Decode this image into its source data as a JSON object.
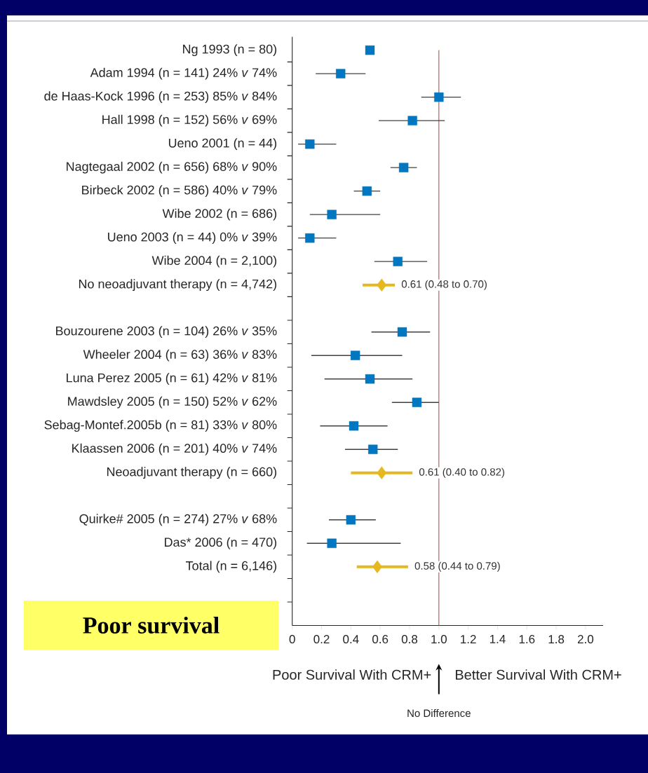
{
  "chart_data": {
    "type": "scatter",
    "orientation": "horizontal",
    "categories": [
      "Ng 1993 (n = 80)",
      "Adam 1994 (n = 141) 24% *v* 74%",
      "de Haas-Kock 1996 (n = 253) 85% *v* 84%",
      "Hall 1998 (n = 152) 56% *v* 69%",
      "Ueno 2001 (n = 44)",
      "Nagtegaal 2002 (n = 656) 68% *v* 90%",
      "Birbeck 2002 (n = 586) 40% *v* 79%",
      "Wibe 2002 (n = 686)",
      "Ueno 2003 (n = 44) 0% *v* 39%",
      "Wibe 2004 (n = 2,100)",
      "No neoadjuvant therapy (n = 4,742)",
      null,
      "Bouzourene 2003 (n = 104) 26% *v* 35%",
      "Wheeler 2004 (n = 63) 36% *v* 83%",
      "Luna Perez 2005 (n = 61) 42% *v* 81%",
      "Mawdsley 2005 (n = 150) 52% *v* 62%",
      "Sebag-Montef.2005b (n = 81) 33% *v* 80%",
      "Klaassen 2006 (n = 201) 40% *v* 74%",
      "Neoadjuvant therapy (n = 660)",
      null,
      "Quirke# 2005 (n = 274) 27% *v* 68%",
      "Das* 2006 (n = 470)",
      "Total (n = 6,146)",
      null,
      null
    ],
    "series": [
      {
        "color": "#0077c0",
        "marker": "square",
        "values": [
          0.53,
          0.33,
          1.0,
          0.82,
          0.12,
          0.76,
          0.51,
          0.27,
          0.12,
          0.72,
          null,
          null,
          0.75,
          0.43,
          0.53,
          0.85,
          0.42,
          0.55,
          null,
          null,
          0.4,
          0.27,
          null,
          null,
          null
        ],
        "errors": [
          null,
          [
            0.16,
            0.5
          ],
          [
            0.88,
            1.15
          ],
          [
            0.59,
            1.04
          ],
          [
            0.04,
            0.3
          ],
          [
            0.67,
            0.85
          ],
          [
            0.42,
            0.6
          ],
          [
            0.12,
            0.6
          ],
          [
            0.04,
            0.3
          ],
          [
            0.56,
            0.92
          ],
          null,
          null,
          [
            0.54,
            0.94
          ],
          [
            0.13,
            0.75
          ],
          [
            0.22,
            0.82
          ],
          [
            0.68,
            1.0
          ],
          [
            0.19,
            0.65
          ],
          [
            0.36,
            0.72
          ],
          null,
          null,
          [
            0.25,
            0.57
          ],
          [
            0.1,
            0.74
          ],
          null,
          null,
          null
        ]
      },
      {
        "color": "#e6b820",
        "marker": "diamond",
        "values": [
          null,
          null,
          null,
          null,
          null,
          null,
          null,
          null,
          null,
          null,
          0.61,
          null,
          null,
          null,
          null,
          null,
          null,
          null,
          0.61,
          null,
          null,
          null,
          0.58,
          null,
          null
        ],
        "errors": [
          null,
          null,
          null,
          null,
          null,
          null,
          null,
          null,
          null,
          null,
          [
            0.48,
            0.7
          ],
          null,
          null,
          null,
          null,
          null,
          null,
          null,
          [
            0.4,
            0.82
          ],
          null,
          null,
          null,
          [
            0.44,
            0.79
          ],
          null,
          null
        ],
        "value_labels": [
          null,
          null,
          null,
          null,
          null,
          null,
          null,
          null,
          null,
          null,
          "0.61 (0.48 to 0.70)",
          null,
          null,
          null,
          null,
          null,
          null,
          null,
          "0.61 (0.40 to 0.82)",
          null,
          null,
          null,
          "0.58 (0.44 to 0.79)",
          null,
          null
        ]
      }
    ],
    "xlim": [
      0,
      2.12
    ],
    "xticks": [
      0,
      0.2,
      0.4,
      0.6,
      0.8,
      {
        "value": 1,
        "label": "1.0"
      },
      1.2,
      1.4,
      1.6,
      1.8,
      {
        "value": 2,
        "label": "2.0"
      }
    ],
    "ref_lines": [
      {
        "axis": "x",
        "value": 1,
        "color": "#c0504d"
      }
    ],
    "annotations": [
      "Poor Survival With CRM+",
      "Better Survival With CRM+",
      "Poor survival",
      "No Difference"
    ]
  }
}
